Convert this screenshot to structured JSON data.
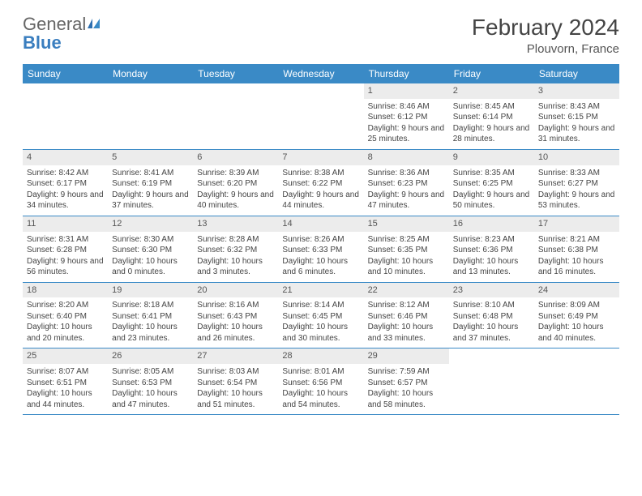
{
  "brand": {
    "part1": "General",
    "part2": "Blue"
  },
  "title": "February 2024",
  "location": "Plouvorn, France",
  "colors": {
    "header_bg": "#3a8ac6",
    "header_text": "#ffffff",
    "daynum_bg": "#ececec",
    "text": "#444444",
    "border": "#3a8ac6"
  },
  "weekdays": [
    "Sunday",
    "Monday",
    "Tuesday",
    "Wednesday",
    "Thursday",
    "Friday",
    "Saturday"
  ],
  "first_weekday_index": 4,
  "days": [
    {
      "n": 1,
      "sunrise": "8:46 AM",
      "sunset": "6:12 PM",
      "daylight": "9 hours and 25 minutes."
    },
    {
      "n": 2,
      "sunrise": "8:45 AM",
      "sunset": "6:14 PM",
      "daylight": "9 hours and 28 minutes."
    },
    {
      "n": 3,
      "sunrise": "8:43 AM",
      "sunset": "6:15 PM",
      "daylight": "9 hours and 31 minutes."
    },
    {
      "n": 4,
      "sunrise": "8:42 AM",
      "sunset": "6:17 PM",
      "daylight": "9 hours and 34 minutes."
    },
    {
      "n": 5,
      "sunrise": "8:41 AM",
      "sunset": "6:19 PM",
      "daylight": "9 hours and 37 minutes."
    },
    {
      "n": 6,
      "sunrise": "8:39 AM",
      "sunset": "6:20 PM",
      "daylight": "9 hours and 40 minutes."
    },
    {
      "n": 7,
      "sunrise": "8:38 AM",
      "sunset": "6:22 PM",
      "daylight": "9 hours and 44 minutes."
    },
    {
      "n": 8,
      "sunrise": "8:36 AM",
      "sunset": "6:23 PM",
      "daylight": "9 hours and 47 minutes."
    },
    {
      "n": 9,
      "sunrise": "8:35 AM",
      "sunset": "6:25 PM",
      "daylight": "9 hours and 50 minutes."
    },
    {
      "n": 10,
      "sunrise": "8:33 AM",
      "sunset": "6:27 PM",
      "daylight": "9 hours and 53 minutes."
    },
    {
      "n": 11,
      "sunrise": "8:31 AM",
      "sunset": "6:28 PM",
      "daylight": "9 hours and 56 minutes."
    },
    {
      "n": 12,
      "sunrise": "8:30 AM",
      "sunset": "6:30 PM",
      "daylight": "10 hours and 0 minutes."
    },
    {
      "n": 13,
      "sunrise": "8:28 AM",
      "sunset": "6:32 PM",
      "daylight": "10 hours and 3 minutes."
    },
    {
      "n": 14,
      "sunrise": "8:26 AM",
      "sunset": "6:33 PM",
      "daylight": "10 hours and 6 minutes."
    },
    {
      "n": 15,
      "sunrise": "8:25 AM",
      "sunset": "6:35 PM",
      "daylight": "10 hours and 10 minutes."
    },
    {
      "n": 16,
      "sunrise": "8:23 AM",
      "sunset": "6:36 PM",
      "daylight": "10 hours and 13 minutes."
    },
    {
      "n": 17,
      "sunrise": "8:21 AM",
      "sunset": "6:38 PM",
      "daylight": "10 hours and 16 minutes."
    },
    {
      "n": 18,
      "sunrise": "8:20 AM",
      "sunset": "6:40 PM",
      "daylight": "10 hours and 20 minutes."
    },
    {
      "n": 19,
      "sunrise": "8:18 AM",
      "sunset": "6:41 PM",
      "daylight": "10 hours and 23 minutes."
    },
    {
      "n": 20,
      "sunrise": "8:16 AM",
      "sunset": "6:43 PM",
      "daylight": "10 hours and 26 minutes."
    },
    {
      "n": 21,
      "sunrise": "8:14 AM",
      "sunset": "6:45 PM",
      "daylight": "10 hours and 30 minutes."
    },
    {
      "n": 22,
      "sunrise": "8:12 AM",
      "sunset": "6:46 PM",
      "daylight": "10 hours and 33 minutes."
    },
    {
      "n": 23,
      "sunrise": "8:10 AM",
      "sunset": "6:48 PM",
      "daylight": "10 hours and 37 minutes."
    },
    {
      "n": 24,
      "sunrise": "8:09 AM",
      "sunset": "6:49 PM",
      "daylight": "10 hours and 40 minutes."
    },
    {
      "n": 25,
      "sunrise": "8:07 AM",
      "sunset": "6:51 PM",
      "daylight": "10 hours and 44 minutes."
    },
    {
      "n": 26,
      "sunrise": "8:05 AM",
      "sunset": "6:53 PM",
      "daylight": "10 hours and 47 minutes."
    },
    {
      "n": 27,
      "sunrise": "8:03 AM",
      "sunset": "6:54 PM",
      "daylight": "10 hours and 51 minutes."
    },
    {
      "n": 28,
      "sunrise": "8:01 AM",
      "sunset": "6:56 PM",
      "daylight": "10 hours and 54 minutes."
    },
    {
      "n": 29,
      "sunrise": "7:59 AM",
      "sunset": "6:57 PM",
      "daylight": "10 hours and 58 minutes."
    }
  ],
  "labels": {
    "sunrise_prefix": "Sunrise: ",
    "sunset_prefix": "Sunset: ",
    "daylight_prefix": "Daylight: "
  }
}
